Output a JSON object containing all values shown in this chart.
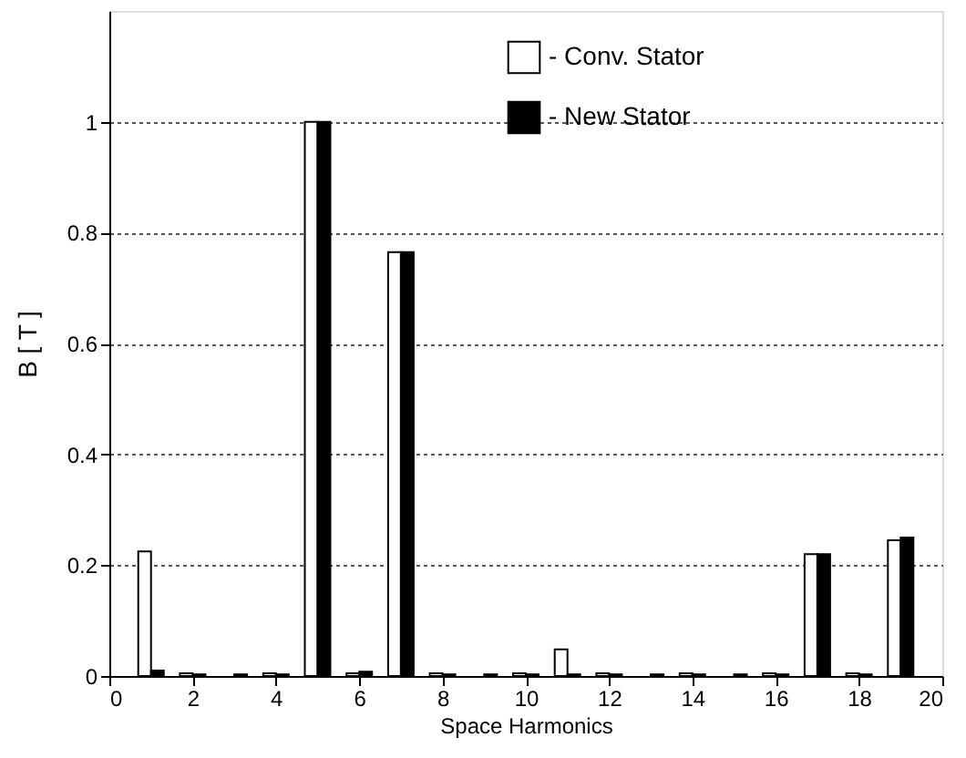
{
  "chart_data": {
    "type": "bar",
    "xlabel": "Space Harmonics",
    "ylabel": "B   [ T ]",
    "x": [
      1,
      2,
      3,
      4,
      5,
      6,
      7,
      8,
      9,
      10,
      11,
      12,
      13,
      14,
      15,
      16,
      17,
      18,
      19
    ],
    "series": [
      {
        "name": "- Conv. Stator",
        "color": "#ffffff",
        "values": [
          0.225,
          0.005,
          null,
          0.005,
          1.0,
          0.005,
          0.765,
          0.005,
          null,
          0.005,
          0.048,
          0.005,
          null,
          0.005,
          null,
          0.005,
          0.22,
          0.005,
          0.245
        ]
      },
      {
        "name": "- New Stator",
        "color": "#000000",
        "values": [
          0.01,
          0.003,
          0.003,
          0.003,
          1.0,
          0.008,
          0.765,
          0.003,
          0.003,
          0.003,
          0.003,
          0.003,
          0.003,
          0.003,
          0.003,
          0.003,
          0.22,
          0.003,
          0.25
        ]
      }
    ],
    "xlim": [
      0,
      20
    ],
    "xticks": [
      0,
      2,
      4,
      6,
      8,
      10,
      12,
      14,
      16,
      18,
      20
    ],
    "ylim": [
      0,
      1.2
    ],
    "yticks": [
      0,
      0.2,
      0.4,
      0.6,
      0.8,
      1
    ],
    "grid": "y",
    "legend": "top right"
  }
}
